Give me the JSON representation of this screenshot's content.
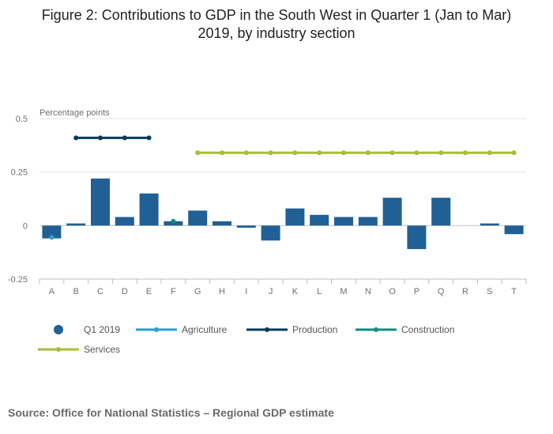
{
  "title_lines": [
    "Figure 2: Contributions to GDP in the South West in Quarter 1 (Jan to Mar)",
    "2019, by industry section"
  ],
  "source": "Source: Office for National Statistics – Regional GDP estimate",
  "colors": {
    "bars": "#206095",
    "agriculture": "#27a0cc",
    "production": "#003c57",
    "construction": "#118c7b",
    "services": "#a8bd3a",
    "grid": "#e6e6e6",
    "axis_text": "#707070"
  },
  "chart_data": {
    "type": "bar",
    "ylabel": "Percentage points",
    "ylim": [
      -0.25,
      0.5
    ],
    "yticks": [
      {
        "value": 0.5,
        "label": "0.5"
      },
      {
        "value": 0.25,
        "label": "0.25"
      },
      {
        "value": 0,
        "label": "0"
      },
      {
        "value": -0.25,
        "label": "-0.25"
      }
    ],
    "categories": [
      "A",
      "B",
      "C",
      "D",
      "E",
      "F",
      "G",
      "H",
      "I",
      "J",
      "K",
      "L",
      "M",
      "N",
      "O",
      "P",
      "Q",
      "R",
      "S",
      "T"
    ],
    "series": [
      {
        "name": "Q1 2019",
        "kind": "bar",
        "values": [
          -0.06,
          0.01,
          0.22,
          0.04,
          0.15,
          0.02,
          0.07,
          0.02,
          -0.01,
          -0.07,
          0.08,
          0.05,
          0.04,
          0.04,
          0.13,
          -0.11,
          0.13,
          0.0,
          0.01,
          -0.04
        ]
      },
      {
        "name": "Agriculture",
        "kind": "line",
        "categories": [
          "A"
        ],
        "value": -0.055
      },
      {
        "name": "Production",
        "kind": "line",
        "categories": [
          "B",
          "C",
          "D",
          "E"
        ],
        "value": 0.41
      },
      {
        "name": "Construction",
        "kind": "line",
        "categories": [
          "F"
        ],
        "value": 0.02
      },
      {
        "name": "Services",
        "kind": "line",
        "categories": [
          "G",
          "H",
          "I",
          "J",
          "K",
          "L",
          "M",
          "N",
          "O",
          "P",
          "Q",
          "R",
          "S",
          "T"
        ],
        "value": 0.34
      }
    ],
    "legend": [
      {
        "name": "Q1 2019",
        "kind": "dot"
      },
      {
        "name": "Agriculture",
        "kind": "line"
      },
      {
        "name": "Production",
        "kind": "line"
      },
      {
        "name": "Construction",
        "kind": "line"
      },
      {
        "name": "Services",
        "kind": "line"
      }
    ]
  }
}
